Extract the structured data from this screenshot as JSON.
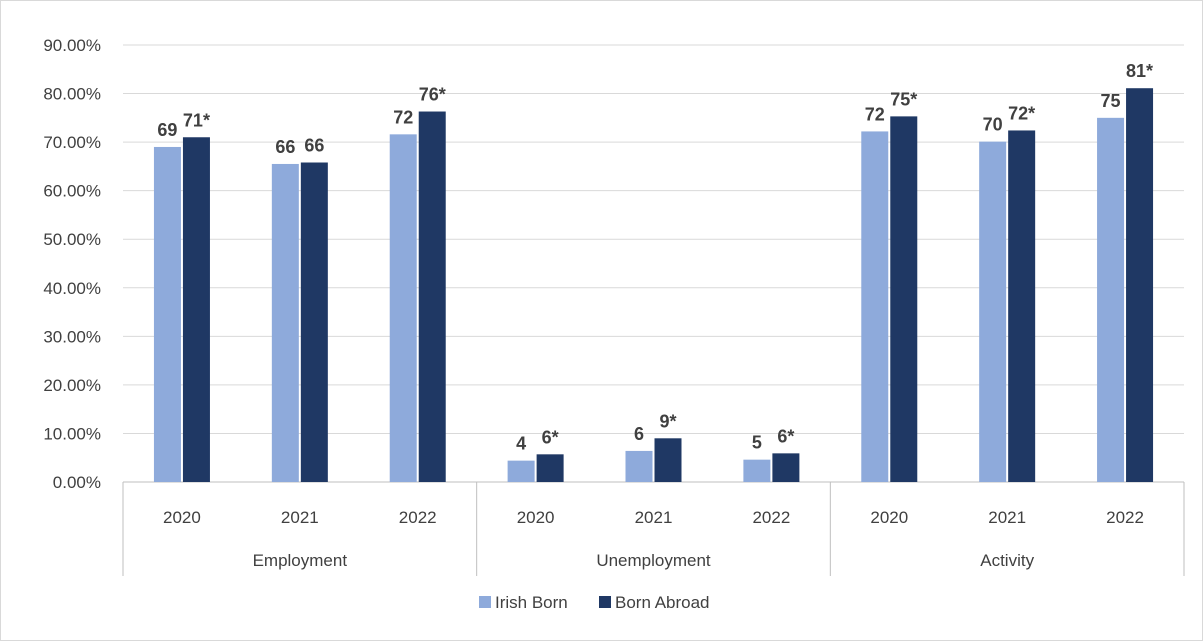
{
  "chart_data": {
    "type": "bar",
    "groups": [
      {
        "name": "Employment",
        "years": [
          "2020",
          "2021",
          "2022"
        ]
      },
      {
        "name": "Unemployment",
        "years": [
          "2020",
          "2021",
          "2022"
        ]
      },
      {
        "name": "Activity",
        "years": [
          "2020",
          "2021",
          "2022"
        ]
      }
    ],
    "series": [
      {
        "name": "Irish Born",
        "color": "#8eaadb",
        "values": [
          69,
          65.5,
          71.6,
          4.4,
          6.4,
          4.6,
          72.2,
          70.1,
          75
        ],
        "labels": [
          "69",
          "66",
          "72",
          "4",
          "6",
          "5",
          "72",
          "70",
          "75"
        ]
      },
      {
        "name": "Born Abroad",
        "color": "#1f3864",
        "values": [
          71,
          65.8,
          76.3,
          5.7,
          9,
          5.9,
          75.3,
          72.4,
          81.1
        ],
        "labels": [
          "71*",
          "66",
          "76*",
          "6*",
          "9*",
          "6*",
          "75*",
          "72*",
          "81*"
        ]
      }
    ],
    "yticks": [
      "0.00%",
      "10.00%",
      "20.00%",
      "30.00%",
      "40.00%",
      "50.00%",
      "60.00%",
      "70.00%",
      "80.00%",
      "90.00%"
    ],
    "ylim": [
      0,
      90
    ],
    "grid": true,
    "legend_position": "bottom",
    "title": "",
    "xlabel": "",
    "ylabel": ""
  }
}
